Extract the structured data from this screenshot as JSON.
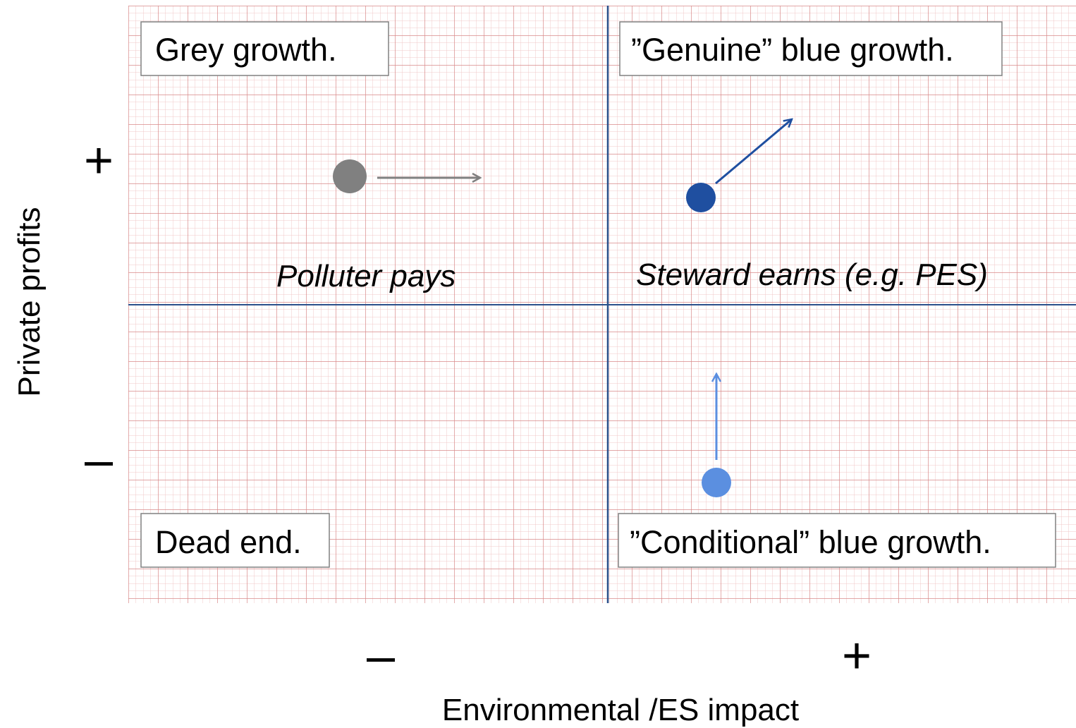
{
  "quadrants": [
    {
      "label": "Grey growth."
    },
    {
      "label": "”Genuine” blue growth."
    },
    {
      "label": "Dead end."
    },
    {
      "label": "”Conditional” blue growth."
    }
  ],
  "annotations": [
    "Polluter pays",
    "Steward earns (e.g. PES)"
  ],
  "axes": {
    "y": {
      "label": "Private profits",
      "plus": "+",
      "minus": "–"
    },
    "x": {
      "label": "Environmental /ES impact",
      "plus": "+",
      "minus": "–"
    }
  }
}
